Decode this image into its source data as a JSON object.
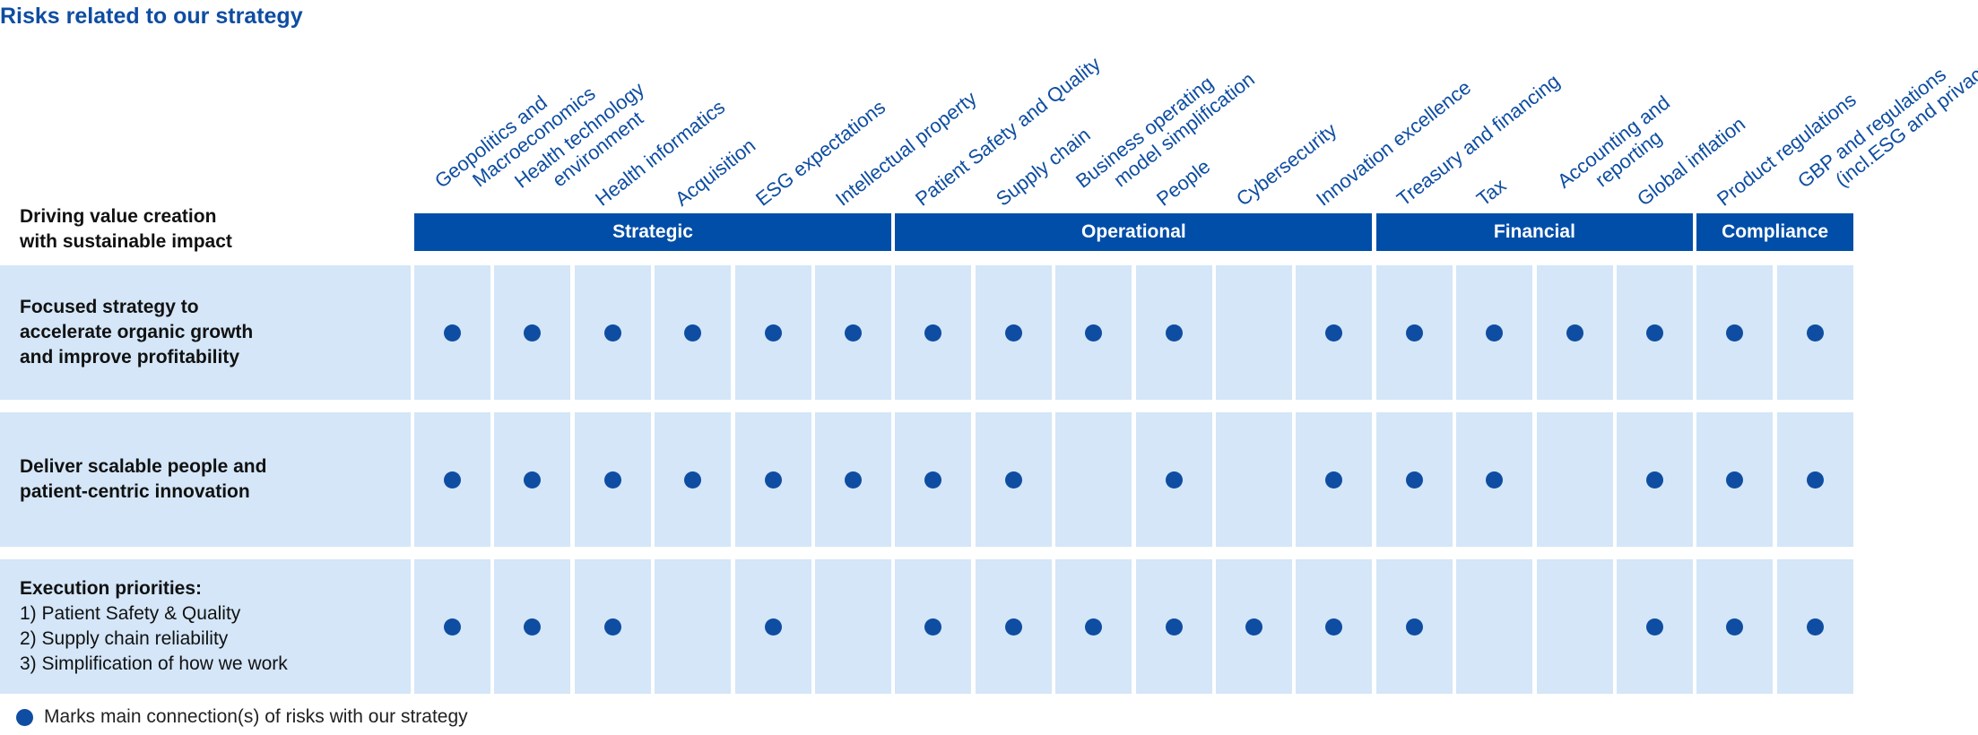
{
  "title": "Risks related to our strategy",
  "header_label": [
    "Driving value creation",
    "with sustainable impact"
  ],
  "columns": [
    [
      "Geopolitics and",
      "Macroeconomics"
    ],
    [
      "Health technology",
      "environment"
    ],
    [
      "Health informatics"
    ],
    [
      "Acquisition"
    ],
    [
      "ESG expectations"
    ],
    [
      "Intellectual property"
    ],
    [
      "Patient Safety and Quality"
    ],
    [
      "Supply chain"
    ],
    [
      "Business operating",
      "model simplification"
    ],
    [
      "People"
    ],
    [
      "Cybersecurity"
    ],
    [
      "Innovation excellence"
    ],
    [
      "Treasury and financing"
    ],
    [
      "Tax"
    ],
    [
      "Accounting and",
      "reporting"
    ],
    [
      "Global inflation"
    ],
    [
      "Product regulations"
    ],
    [
      "GBP and regulations",
      "(incl.ESG and privacy)"
    ]
  ],
  "categories": [
    {
      "label": "Strategic",
      "span": 6
    },
    {
      "label": "Operational",
      "span": 6
    },
    {
      "label": "Financial",
      "span": 4
    },
    {
      "label": "Compliance",
      "span": 2
    }
  ],
  "rows": [
    {
      "label": [
        "Focused strategy to",
        "accelerate organic growth",
        "and improve profitability"
      ],
      "bold_lines": 3,
      "marks": [
        1,
        1,
        1,
        1,
        1,
        1,
        1,
        1,
        1,
        1,
        0,
        1,
        1,
        1,
        1,
        1,
        1,
        1
      ]
    },
    {
      "label": [
        "Deliver scalable people and",
        "patient-centric innovation"
      ],
      "bold_lines": 2,
      "marks": [
        1,
        1,
        1,
        1,
        1,
        1,
        1,
        1,
        0,
        1,
        0,
        1,
        1,
        1,
        0,
        1,
        1,
        1
      ]
    },
    {
      "label": [
        "Execution priorities:",
        "1) Patient Safety & Quality",
        "2) Supply chain reliability",
        "3) Simplification of how we work"
      ],
      "bold_lines": 1,
      "marks": [
        1,
        1,
        1,
        0,
        1,
        0,
        1,
        1,
        1,
        1,
        1,
        1,
        1,
        0,
        0,
        1,
        1,
        1
      ]
    }
  ],
  "legend": "Marks main connection(s) of risks with our strategy",
  "colors": {
    "accent": "#0e4da1",
    "header_bar": "#004ea8",
    "cell_bg": "#d4e6f8"
  }
}
